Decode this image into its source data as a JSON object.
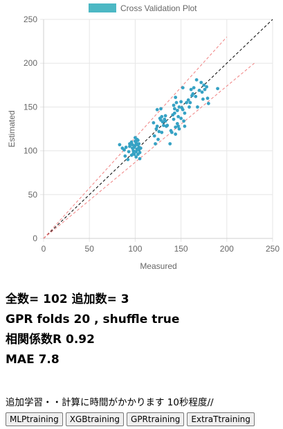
{
  "chart_data": {
    "type": "scatter",
    "legend": {
      "label": "Cross Validation Plot",
      "color": "#4cb8c4",
      "position": "top"
    },
    "xlabel": "Measured",
    "ylabel": "Estimated",
    "xlim": [
      0,
      250
    ],
    "ylim": [
      0,
      250
    ],
    "xticks": [
      "0",
      "50",
      "100",
      "150",
      "200",
      "250"
    ],
    "yticks": [
      "0",
      "50",
      "100",
      "150",
      "200",
      "250"
    ],
    "grid": true,
    "reference_lines": [
      {
        "style": "dashed",
        "color": "#000000",
        "points": [
          [
            0,
            0
          ],
          [
            250,
            250
          ]
        ]
      },
      {
        "style": "dashed",
        "color": "#f08080",
        "points": [
          [
            0,
            0
          ],
          [
            200,
            230
          ]
        ]
      },
      {
        "style": "dashed",
        "color": "#f08080",
        "points": [
          [
            0,
            0
          ],
          [
            230,
            200
          ]
        ]
      }
    ],
    "points": [
      [
        83,
        107
      ],
      [
        86,
        103
      ],
      [
        88,
        101
      ],
      [
        89,
        94
      ],
      [
        90,
        104
      ],
      [
        92,
        90
      ],
      [
        94,
        105
      ],
      [
        95,
        108
      ],
      [
        96,
        110
      ],
      [
        97,
        103
      ],
      [
        98,
        100
      ],
      [
        98,
        97
      ],
      [
        99,
        104
      ],
      [
        100,
        106
      ],
      [
        100,
        111
      ],
      [
        101,
        99
      ],
      [
        101,
        93
      ],
      [
        102,
        102
      ],
      [
        102,
        113
      ],
      [
        103,
        107
      ],
      [
        103,
        96
      ],
      [
        104,
        108
      ],
      [
        104,
        101
      ],
      [
        105,
        91
      ],
      [
        105,
        98
      ],
      [
        106,
        103
      ],
      [
        100,
        115
      ],
      [
        99,
        96
      ],
      [
        97,
        107
      ],
      [
        103,
        112
      ],
      [
        93,
        99
      ],
      [
        96,
        95
      ],
      [
        101,
        109
      ],
      [
        94,
        108
      ],
      [
        104,
        104
      ],
      [
        120,
        132
      ],
      [
        121,
        117
      ],
      [
        122,
        108
      ],
      [
        123,
        125
      ],
      [
        124,
        128
      ],
      [
        125,
        113
      ],
      [
        126,
        122
      ],
      [
        124,
        147
      ],
      [
        127,
        137
      ],
      [
        128,
        148
      ],
      [
        129,
        121
      ],
      [
        129,
        139
      ],
      [
        130,
        133
      ],
      [
        131,
        129
      ],
      [
        132,
        136
      ],
      [
        133,
        134
      ],
      [
        133,
        140
      ],
      [
        134,
        128
      ],
      [
        135,
        129
      ],
      [
        128,
        135
      ],
      [
        138,
        108
      ],
      [
        139,
        123
      ],
      [
        140,
        121
      ],
      [
        141,
        141
      ],
      [
        142,
        136
      ],
      [
        142,
        152
      ],
      [
        143,
        148
      ],
      [
        143,
        143
      ],
      [
        144,
        127
      ],
      [
        144,
        119
      ],
      [
        145,
        155
      ],
      [
        146,
        131
      ],
      [
        146,
        146
      ],
      [
        147,
        128
      ],
      [
        147,
        139
      ],
      [
        148,
        125
      ],
      [
        148,
        150
      ],
      [
        150,
        137
      ],
      [
        150,
        156
      ],
      [
        151,
        149
      ],
      [
        152,
        147
      ],
      [
        152,
        172
      ],
      [
        153,
        134
      ],
      [
        154,
        128
      ],
      [
        154,
        143
      ],
      [
        156,
        155
      ],
      [
        158,
        158
      ],
      [
        159,
        150
      ],
      [
        160,
        155
      ],
      [
        161,
        170
      ],
      [
        162,
        163
      ],
      [
        163,
        165
      ],
      [
        164,
        172
      ],
      [
        166,
        162
      ],
      [
        167,
        181
      ],
      [
        168,
        150
      ],
      [
        170,
        169
      ],
      [
        172,
        178
      ],
      [
        173,
        167
      ],
      [
        174,
        159
      ],
      [
        175,
        175
      ],
      [
        176,
        170
      ],
      [
        178,
        173
      ],
      [
        179,
        160
      ],
      [
        180,
        154
      ],
      [
        190,
        171
      ],
      [
        144,
        161
      ]
    ],
    "point_color": "#36a2c4"
  },
  "stats": {
    "line1": "全数= 102 追加数= 3",
    "line2": "GPR folds 20 , shuffle true",
    "line3": "相関係数R 0.92",
    "line4": "MAE 7.8"
  },
  "note": "追加学習・・計算に時間がかかります 10秒程度//",
  "buttons": {
    "mlp": "MLPtraining",
    "xgb": "XGBtraining",
    "gpr": "GPRtraining",
    "extra": "ExtraTtraining"
  }
}
